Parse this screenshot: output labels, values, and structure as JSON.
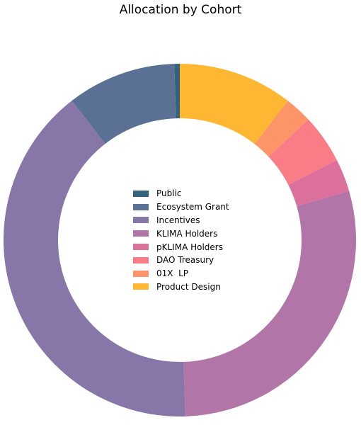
{
  "chart_data": {
    "type": "pie",
    "style": "donut",
    "title": "Allocation by Cohort",
    "categories": [
      "Public",
      "Ecosystem Grant",
      "Incentives",
      "KLIMA Holders",
      "pKLIMA Holders",
      "DAO Treasury",
      "01X  LP",
      "Product Design"
    ],
    "values": [
      0.5,
      10.0,
      40.0,
      29.0,
      3.0,
      4.5,
      2.5,
      10.5
    ],
    "colors": [
      "#33637f",
      "#5a7095",
      "#8776a8",
      "#b275a7",
      "#da709b",
      "#f97c86",
      "#fd9569",
      "#feb733"
    ],
    "direction": "counterclockwise",
    "start": "top",
    "legend_position": "center"
  }
}
